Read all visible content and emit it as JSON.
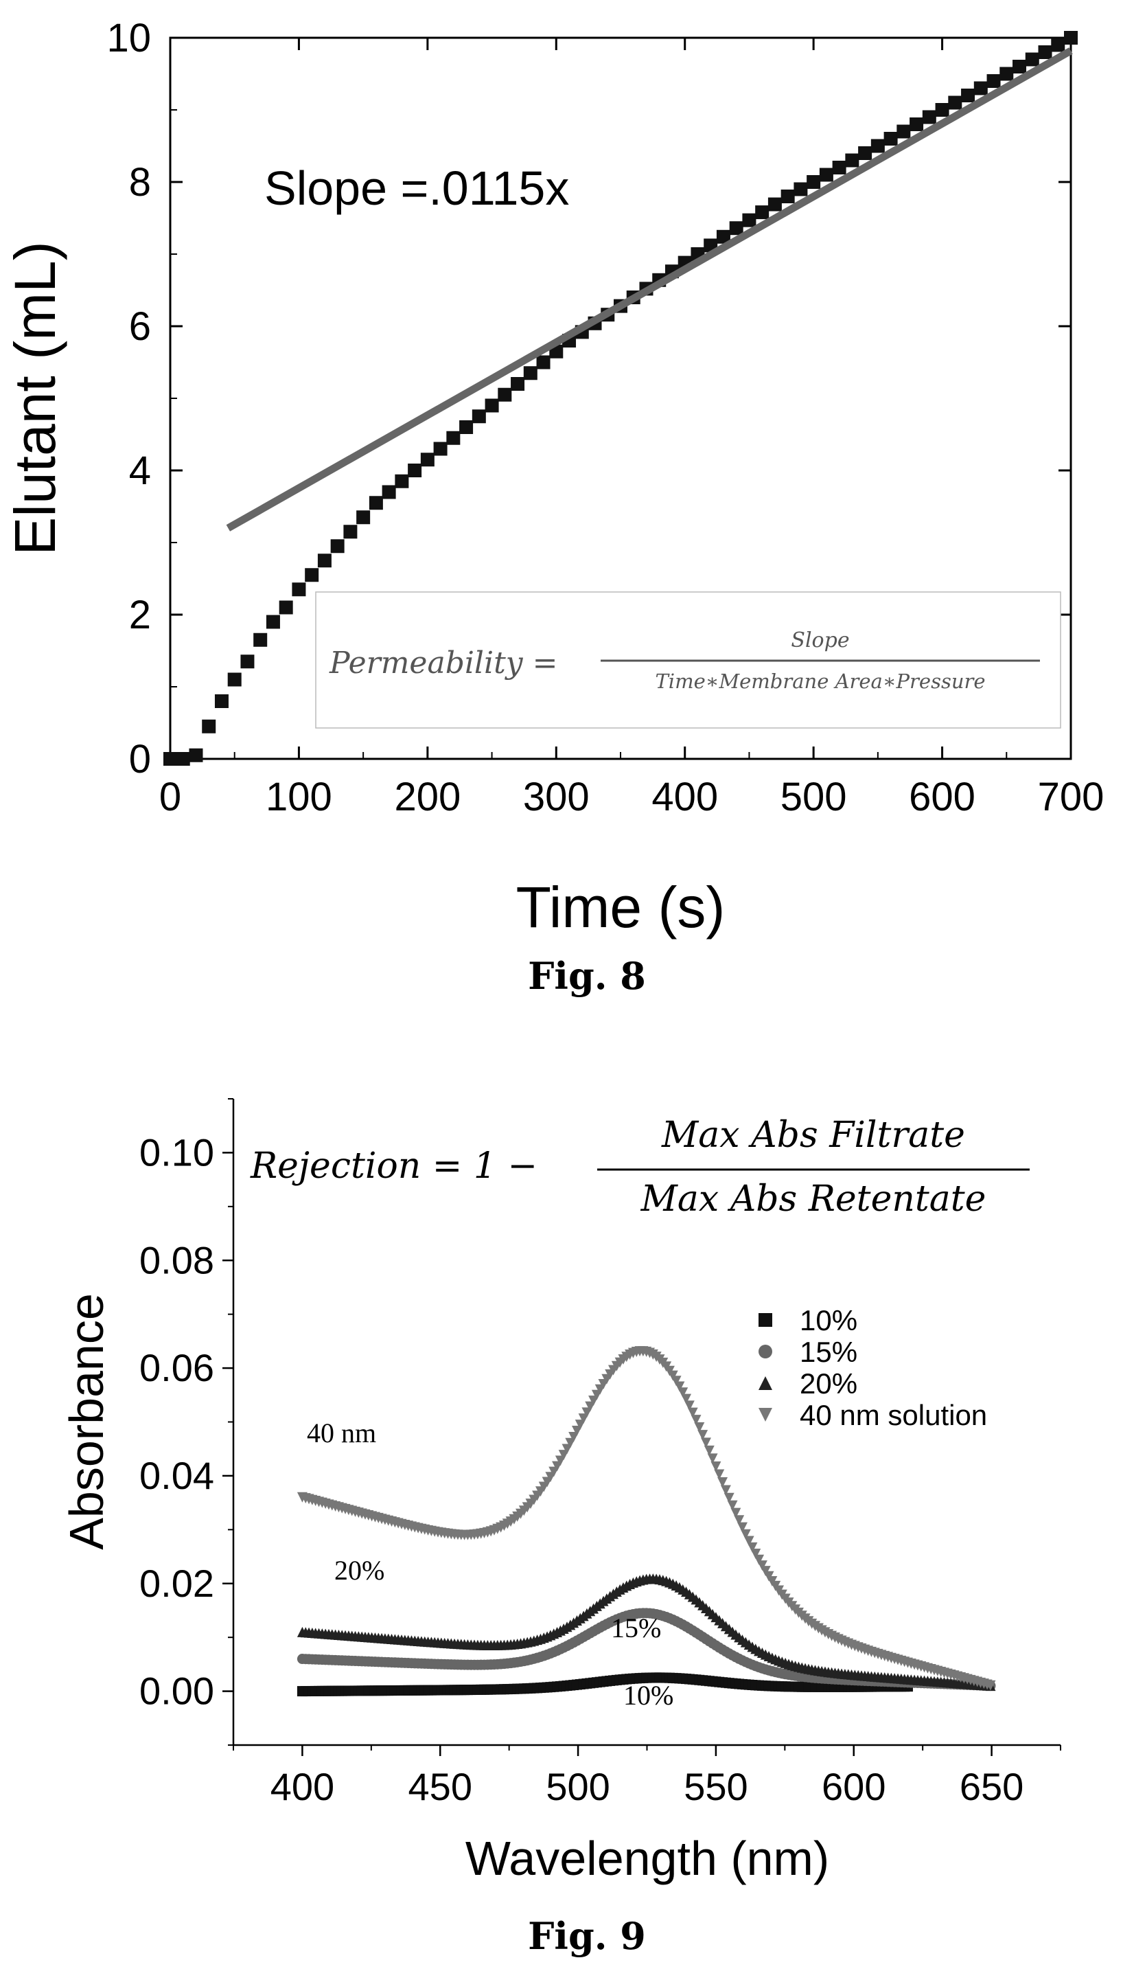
{
  "chart_data": [
    {
      "type": "scatter",
      "figure_label": "Fig. 8",
      "xlabel": "Time (s)",
      "ylabel": "Elutant (mL)",
      "xlim": [
        0,
        700
      ],
      "ylim": [
        0,
        10
      ],
      "x_ticks": [
        "0",
        "100",
        "200",
        "300",
        "400",
        "500",
        "600",
        "700"
      ],
      "y_ticks": [
        "0",
        "2",
        "4",
        "6",
        "8",
        "10"
      ],
      "annotations": {
        "slope": "Slope =.0115x",
        "permeability_lhs": "Permeability =",
        "permeability_num": "Slope",
        "permeability_den": "Time∗Membrane Area∗Pressure"
      },
      "series": [
        {
          "marker": "square",
          "color": "#111111",
          "points": [
            [
              0,
              0
            ],
            [
              10,
              0
            ],
            [
              20,
              0.05
            ],
            [
              30,
              0.45
            ],
            [
              40,
              0.8
            ],
            [
              50,
              1.1
            ],
            [
              60,
              1.35
            ],
            [
              70,
              1.65
            ],
            [
              80,
              1.9
            ],
            [
              90,
              2.1
            ],
            [
              100,
              2.35
            ],
            [
              110,
              2.55
            ],
            [
              120,
              2.75
            ],
            [
              130,
              2.95
            ],
            [
              140,
              3.15
            ],
            [
              150,
              3.35
            ],
            [
              160,
              3.55
            ],
            [
              170,
              3.7
            ],
            [
              180,
              3.85
            ],
            [
              190,
              4.0
            ],
            [
              200,
              4.15
            ],
            [
              210,
              4.3
            ],
            [
              220,
              4.45
            ],
            [
              230,
              4.6
            ],
            [
              240,
              4.75
            ],
            [
              250,
              4.9
            ],
            [
              260,
              5.05
            ],
            [
              270,
              5.2
            ],
            [
              280,
              5.35
            ],
            [
              290,
              5.5
            ],
            [
              300,
              5.65
            ],
            [
              310,
              5.8
            ],
            [
              320,
              5.92
            ],
            [
              330,
              6.04
            ],
            [
              340,
              6.16
            ],
            [
              350,
              6.28
            ],
            [
              360,
              6.4
            ],
            [
              370,
              6.52
            ],
            [
              380,
              6.64
            ],
            [
              390,
              6.76
            ],
            [
              400,
              6.88
            ],
            [
              410,
              7.0
            ],
            [
              420,
              7.12
            ],
            [
              430,
              7.24
            ],
            [
              440,
              7.36
            ],
            [
              450,
              7.47
            ],
            [
              460,
              7.58
            ],
            [
              470,
              7.69
            ],
            [
              480,
              7.8
            ],
            [
              490,
              7.9
            ],
            [
              500,
              8.0
            ],
            [
              510,
              8.1
            ],
            [
              520,
              8.2
            ],
            [
              530,
              8.3
            ],
            [
              540,
              8.4
            ],
            [
              550,
              8.5
            ],
            [
              560,
              8.6
            ],
            [
              570,
              8.7
            ],
            [
              580,
              8.8
            ],
            [
              590,
              8.9
            ],
            [
              600,
              9.0
            ],
            [
              610,
              9.1
            ],
            [
              620,
              9.2
            ],
            [
              630,
              9.3
            ],
            [
              640,
              9.4
            ],
            [
              650,
              9.5
            ],
            [
              660,
              9.6
            ],
            [
              670,
              9.7
            ],
            [
              680,
              9.8
            ],
            [
              690,
              9.9
            ],
            [
              700,
              10.0
            ]
          ]
        }
      ],
      "fit_line": {
        "color": "#666666",
        "x": [
          45,
          700
        ],
        "y": [
          3.2,
          9.82
        ]
      }
    },
    {
      "type": "scatter",
      "figure_label": "Fig. 9",
      "xlabel": "Wavelength (nm)",
      "ylabel": "Absorbance",
      "xlim": [
        375,
        675
      ],
      "ylim": [
        -0.01,
        0.11
      ],
      "x_ticks": [
        "400",
        "450",
        "500",
        "550",
        "600",
        "650"
      ],
      "y_ticks": [
        "0.00",
        "0.02",
        "0.04",
        "0.06",
        "0.08",
        "0.10"
      ],
      "equation": {
        "lhs": "Rejection = 1 −",
        "num": "Max Abs Filtrate",
        "den": "Max Abs Retentate"
      },
      "curve_labels": [
        "40 nm",
        "20%",
        "15%",
        "10%"
      ],
      "legend_position": "right",
      "series": [
        {
          "name": "10%",
          "marker": "square",
          "color": "#111111",
          "start": 400,
          "end": 620,
          "base": 0.0,
          "slope": 4e-06,
          "peak": 0.002,
          "center": 528,
          "width": 30
        },
        {
          "name": "15%",
          "marker": "circle",
          "color": "#666666",
          "start": 400,
          "end": 650,
          "base": 0.006,
          "slope": -2e-05,
          "peak": 0.011,
          "center": 525,
          "width": 30
        },
        {
          "name": "20%",
          "marker": "triangle-up",
          "color": "#222222",
          "start": 400,
          "end": 650,
          "base": 0.011,
          "slope": -4e-05,
          "peak": 0.015,
          "center": 528,
          "width": 30
        },
        {
          "name": "40 nm solution",
          "marker": "triangle-down",
          "color": "#777777",
          "start": 400,
          "end": 650,
          "base": 0.036,
          "slope": -0.00014,
          "peak": 0.0445,
          "center": 525,
          "width": 35
        }
      ]
    }
  ]
}
